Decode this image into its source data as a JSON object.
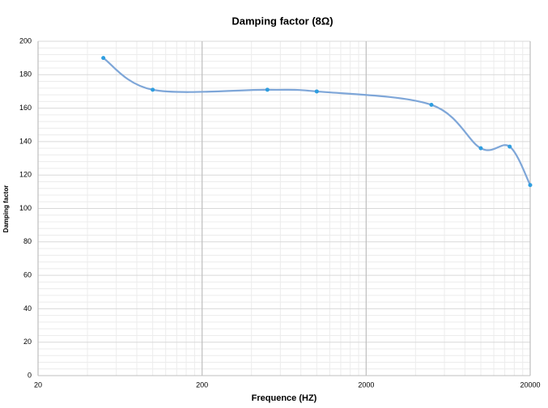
{
  "chart_data": {
    "type": "line",
    "title": "Damping factor (8Ω)",
    "xlabel": "Frequence (HZ)",
    "ylabel": "Damping factor",
    "x": [
      50,
      100,
      500,
      1000,
      5000,
      10000,
      15000,
      20000
    ],
    "series": [
      {
        "name": "Damping factor",
        "color": "#7ea6d8",
        "marker_color": "#2e9ee0",
        "values": [
          190,
          171,
          171,
          170,
          162,
          136,
          137,
          114
        ]
      }
    ],
    "xscale": "log",
    "xlim": [
      20,
      20000
    ],
    "xticks": [
      20,
      200,
      2000,
      20000
    ],
    "ylim": [
      0,
      200
    ],
    "yticks": [
      0,
      20,
      40,
      60,
      80,
      100,
      120,
      140,
      160,
      180,
      200
    ],
    "grid": true,
    "smooth": true
  }
}
